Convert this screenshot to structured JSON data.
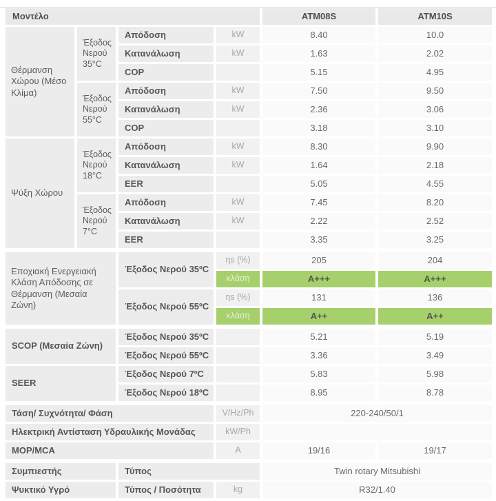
{
  "colors": {
    "accent_green": "#a6d06b",
    "cell_gray": "#ececec",
    "header_gray": "#e9e9e9"
  },
  "models": [
    "ATM08S",
    "ATM10S"
  ],
  "table": {
    "cells": [
      {
        "r": 1,
        "c": 1,
        "cs": 4,
        "k": "head",
        "t": "Μοντέλο"
      },
      {
        "r": 1,
        "c": 5,
        "k": "headm",
        "t": "ATM08S"
      },
      {
        "r": 1,
        "c": 6,
        "k": "headm",
        "t": "ATM10S"
      },
      {
        "r": 2,
        "c": 1,
        "rs": 6,
        "k": "section",
        "t": "Θέρμανση Χώρου (Μέσο Κλίμα)"
      },
      {
        "r": 2,
        "c": 2,
        "rs": 3,
        "k": "sub",
        "t": "Έξοδος Νερού 35°C"
      },
      {
        "r": 2,
        "c": 3,
        "k": "param",
        "t": "Απόδοση"
      },
      {
        "r": 2,
        "c": 4,
        "k": "unit",
        "t": "kW"
      },
      {
        "r": 2,
        "c": 5,
        "k": "val",
        "t": "8.40"
      },
      {
        "r": 2,
        "c": 6,
        "k": "val",
        "t": "10.0"
      },
      {
        "r": 3,
        "c": 3,
        "k": "param",
        "t": "Κατανάλωση"
      },
      {
        "r": 3,
        "c": 4,
        "k": "unit",
        "t": "kW"
      },
      {
        "r": 3,
        "c": 5,
        "k": "val",
        "t": "1.63"
      },
      {
        "r": 3,
        "c": 6,
        "k": "val",
        "t": "2.02"
      },
      {
        "r": 4,
        "c": 3,
        "k": "param",
        "t": "COP"
      },
      {
        "r": 4,
        "c": 4,
        "k": "unit",
        "t": ""
      },
      {
        "r": 4,
        "c": 5,
        "k": "val",
        "t": "5.15"
      },
      {
        "r": 4,
        "c": 6,
        "k": "val",
        "t": "4.95"
      },
      {
        "r": 5,
        "c": 2,
        "rs": 3,
        "k": "sub",
        "t": "Έξοδος Νερού 55°C"
      },
      {
        "r": 5,
        "c": 3,
        "k": "param",
        "t": "Απόδοση"
      },
      {
        "r": 5,
        "c": 4,
        "k": "unit",
        "t": "kW"
      },
      {
        "r": 5,
        "c": 5,
        "k": "val",
        "t": "7.50"
      },
      {
        "r": 5,
        "c": 6,
        "k": "val",
        "t": "9.50"
      },
      {
        "r": 6,
        "c": 3,
        "k": "param",
        "t": "Κατανάλωση"
      },
      {
        "r": 6,
        "c": 4,
        "k": "unit",
        "t": "kW"
      },
      {
        "r": 6,
        "c": 5,
        "k": "val",
        "t": "2.36"
      },
      {
        "r": 6,
        "c": 6,
        "k": "val",
        "t": "3.06"
      },
      {
        "r": 7,
        "c": 3,
        "k": "param",
        "t": "COP"
      },
      {
        "r": 7,
        "c": 4,
        "k": "unit",
        "t": ""
      },
      {
        "r": 7,
        "c": 5,
        "k": "val",
        "t": "3.18"
      },
      {
        "r": 7,
        "c": 6,
        "k": "val",
        "t": "3.10"
      },
      {
        "r": 8,
        "c": 1,
        "rs": 6,
        "k": "section",
        "t": "Ψύξη Χώρου"
      },
      {
        "r": 8,
        "c": 2,
        "rs": 3,
        "k": "sub",
        "t": "Έξοδος Νερού 18°C"
      },
      {
        "r": 8,
        "c": 3,
        "k": "param",
        "t": "Απόδοση"
      },
      {
        "r": 8,
        "c": 4,
        "k": "unit",
        "t": "kW"
      },
      {
        "r": 8,
        "c": 5,
        "k": "val",
        "t": "8.30"
      },
      {
        "r": 8,
        "c": 6,
        "k": "val",
        "t": "9.90"
      },
      {
        "r": 9,
        "c": 3,
        "k": "param",
        "t": "Κατανάλωση"
      },
      {
        "r": 9,
        "c": 4,
        "k": "unit",
        "t": "kW"
      },
      {
        "r": 9,
        "c": 5,
        "k": "val",
        "t": "1.64"
      },
      {
        "r": 9,
        "c": 6,
        "k": "val",
        "t": "2.18"
      },
      {
        "r": 10,
        "c": 3,
        "k": "param",
        "t": "EER"
      },
      {
        "r": 10,
        "c": 4,
        "k": "unit",
        "t": ""
      },
      {
        "r": 10,
        "c": 5,
        "k": "val",
        "t": "5.05"
      },
      {
        "r": 10,
        "c": 6,
        "k": "val",
        "t": "4.55"
      },
      {
        "r": 11,
        "c": 2,
        "rs": 3,
        "k": "sub",
        "t": "Έξοδος Νερού 7°C"
      },
      {
        "r": 11,
        "c": 3,
        "k": "param",
        "t": "Απόδοση"
      },
      {
        "r": 11,
        "c": 4,
        "k": "unit",
        "t": "kW"
      },
      {
        "r": 11,
        "c": 5,
        "k": "val",
        "t": "7.45"
      },
      {
        "r": 11,
        "c": 6,
        "k": "val",
        "t": "8.20"
      },
      {
        "r": 12,
        "c": 3,
        "k": "param",
        "t": "Κατανάλωση"
      },
      {
        "r": 12,
        "c": 4,
        "k": "unit",
        "t": "kW"
      },
      {
        "r": 12,
        "c": 5,
        "k": "val",
        "t": "2.22"
      },
      {
        "r": 12,
        "c": 6,
        "k": "val",
        "t": "2.52"
      },
      {
        "r": 13,
        "c": 3,
        "k": "param",
        "t": "EER"
      },
      {
        "r": 13,
        "c": 4,
        "k": "unit",
        "t": ""
      },
      {
        "r": 13,
        "c": 5,
        "k": "val",
        "t": "3.35"
      },
      {
        "r": 13,
        "c": 6,
        "k": "val",
        "t": "3.25"
      },
      {
        "r": 15,
        "c": 1,
        "rs": 4,
        "cs": 2,
        "k": "section",
        "t": "Εποχιακή Ενεργειακή Κλάση Απόδοσης σε Θέρμανση (Μεσαία Ζώνη)"
      },
      {
        "r": 15,
        "c": 3,
        "rs": 2,
        "k": "param",
        "t": "Έξοδος Νερού 35ºC"
      },
      {
        "r": 15,
        "c": 4,
        "k": "unit",
        "t": "ηs (%)"
      },
      {
        "r": 15,
        "c": 5,
        "k": "val",
        "t": "205"
      },
      {
        "r": 15,
        "c": 6,
        "k": "val",
        "t": "204"
      },
      {
        "r": 16,
        "c": 4,
        "k": "gunit",
        "t": "κλάση"
      },
      {
        "r": 16,
        "c": 5,
        "k": "green",
        "t": "A+++"
      },
      {
        "r": 16,
        "c": 6,
        "k": "green",
        "t": "A+++"
      },
      {
        "r": 17,
        "c": 3,
        "rs": 2,
        "k": "param",
        "t": "Έξοδος Νερού 55ºC"
      },
      {
        "r": 17,
        "c": 4,
        "k": "unit",
        "t": "ηs (%)"
      },
      {
        "r": 17,
        "c": 5,
        "k": "val",
        "t": "131"
      },
      {
        "r": 17,
        "c": 6,
        "k": "val",
        "t": "136"
      },
      {
        "r": 18,
        "c": 4,
        "k": "gunit",
        "t": "κλάση"
      },
      {
        "r": 18,
        "c": 5,
        "k": "green",
        "t": "A++"
      },
      {
        "r": 18,
        "c": 6,
        "k": "green",
        "t": "A++"
      },
      {
        "r": 20,
        "c": 1,
        "rs": 2,
        "cs": 2,
        "k": "label",
        "t": "SCOP (Μεσαία Ζώνη)"
      },
      {
        "r": 20,
        "c": 3,
        "k": "param",
        "t": "Έξοδος Νερού 35ºC"
      },
      {
        "r": 20,
        "c": 4,
        "k": "unit",
        "t": ""
      },
      {
        "r": 20,
        "c": 5,
        "k": "val",
        "t": "5.21"
      },
      {
        "r": 20,
        "c": 6,
        "k": "val",
        "t": "5.19"
      },
      {
        "r": 21,
        "c": 3,
        "k": "param",
        "t": "Έξοδος Νερού 55ºC"
      },
      {
        "r": 21,
        "c": 4,
        "k": "unit",
        "t": ""
      },
      {
        "r": 21,
        "c": 5,
        "k": "val",
        "t": "3.36"
      },
      {
        "r": 21,
        "c": 6,
        "k": "val",
        "t": "3.49"
      },
      {
        "r": 22,
        "c": 1,
        "rs": 2,
        "cs": 2,
        "k": "label",
        "t": "SEER"
      },
      {
        "r": 22,
        "c": 3,
        "k": "param",
        "t": "Έξοδος Νερού 7ºC"
      },
      {
        "r": 22,
        "c": 4,
        "k": "unit",
        "t": ""
      },
      {
        "r": 22,
        "c": 5,
        "k": "val",
        "t": "5.83"
      },
      {
        "r": 22,
        "c": 6,
        "k": "val",
        "t": "5.98"
      },
      {
        "r": 23,
        "c": 3,
        "k": "param",
        "t": "Έξοδος Νερού 18ºC"
      },
      {
        "r": 23,
        "c": 4,
        "k": "unit",
        "t": ""
      },
      {
        "r": 23,
        "c": 5,
        "k": "val",
        "t": "8.95"
      },
      {
        "r": 23,
        "c": 6,
        "k": "val",
        "t": "8.78"
      },
      {
        "r": 25,
        "c": 1,
        "cs": 3,
        "k": "label",
        "t": "Τάση/ Συχνότητα/ Φάση"
      },
      {
        "r": 25,
        "c": 4,
        "k": "unit",
        "t": "V/Hz/Ph"
      },
      {
        "r": 25,
        "c": 5,
        "cs": 2,
        "k": "val",
        "t": "220-240/50/1"
      },
      {
        "r": 26,
        "c": 1,
        "cs": 3,
        "k": "label",
        "t": "Ηλεκτρική Αντίσταση Υδραυλικής Μονάδας"
      },
      {
        "r": 26,
        "c": 4,
        "k": "unit",
        "t": "kW/Ph"
      },
      {
        "r": 26,
        "c": 5,
        "cs": 2,
        "k": "val",
        "t": ""
      },
      {
        "r": 27,
        "c": 1,
        "cs": 3,
        "k": "label",
        "t": "MOP/MCA"
      },
      {
        "r": 27,
        "c": 4,
        "k": "unit",
        "t": "A"
      },
      {
        "r": 27,
        "c": 5,
        "k": "val",
        "t": "19/16"
      },
      {
        "r": 27,
        "c": 6,
        "k": "val",
        "t": "19/17"
      },
      {
        "r": 29,
        "c": 1,
        "cs": 2,
        "k": "label",
        "t": "Συμπιεστής"
      },
      {
        "r": 29,
        "c": 3,
        "cs": 2,
        "k": "param",
        "t": "Τύπος"
      },
      {
        "r": 29,
        "c": 5,
        "cs": 2,
        "k": "val",
        "t": "Twin rotary Mitsubishi"
      },
      {
        "r": 30,
        "c": 1,
        "cs": 2,
        "k": "label",
        "t": "Ψυκτικό Υγρό"
      },
      {
        "r": 30,
        "c": 3,
        "k": "param",
        "t": "Τύπος / Ποσότητα"
      },
      {
        "r": 30,
        "c": 4,
        "k": "unit",
        "t": "kg"
      },
      {
        "r": 30,
        "c": 5,
        "cs": 2,
        "k": "val",
        "t": "R32/1.40"
      }
    ]
  }
}
